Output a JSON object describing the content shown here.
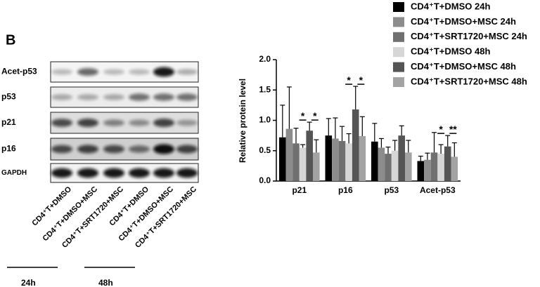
{
  "blot": {
    "panel": "B",
    "rows": [
      "Acet-p53",
      "p53",
      "p21",
      "p16",
      "GAPDH"
    ],
    "lanes": [
      "CD4⁺T+DMSO",
      "CD4⁺T+DMSO+MSC",
      "CD4⁺T+SRT1720+MSC",
      "CD4⁺T+DMSO",
      "CD4⁺T+DMSO+MSC",
      "CD4⁺T+SRT1720+MSC"
    ],
    "timepoints": [
      "24h",
      "48h"
    ]
  },
  "chart_data": {
    "type": "bar",
    "ylabel": "Relative  protein level",
    "categories": [
      "p21",
      "p16",
      "p53",
      "Acet-p53"
    ],
    "series": [
      {
        "name": "CD4⁺T+DMSO 24h",
        "color": "#000000",
        "values": [
          0.72,
          0.75,
          0.65,
          0.33
        ],
        "errors": [
          0.53,
          0.28,
          0.3,
          0.08
        ]
      },
      {
        "name": "CD4⁺T+DMSO+MSC 24h",
        "color": "#8c8c8c",
        "values": [
          0.86,
          0.7,
          0.55,
          0.35
        ],
        "errors": [
          0.69,
          0.34,
          0.15,
          0.11
        ]
      },
      {
        "name": "CD4⁺T+SRT1720+MSC 24h",
        "color": "#707070",
        "values": [
          0.62,
          0.66,
          0.45,
          0.47
        ],
        "errors": [
          0.25,
          0.24,
          0.11,
          0.33
        ]
      },
      {
        "name": "CD4⁺T+DMSO 48h",
        "color": "#d6d6d6",
        "values": [
          0.55,
          0.62,
          0.5,
          0.45
        ],
        "errors": [
          0.05,
          0.16,
          0.17,
          0.15
        ]
      },
      {
        "name": "CD4⁺T+DMSO+MSC 48h",
        "color": "#555555",
        "values": [
          0.83,
          1.18,
          0.75,
          0.57
        ],
        "errors": [
          0.14,
          0.38,
          0.16,
          0.18
        ]
      },
      {
        "name": "CD4⁺T+SRT1720+MSC 48h",
        "color": "#a3a3a3",
        "values": [
          0.47,
          0.74,
          0.47,
          0.4
        ],
        "errors": [
          0.21,
          0.32,
          0.2,
          0.23
        ]
      }
    ],
    "annotations": [
      {
        "text": "*",
        "category": "p21"
      },
      {
        "text": "*",
        "category": "p21"
      },
      {
        "text": "*",
        "category": "p16"
      },
      {
        "text": "*",
        "category": "p16"
      },
      {
        "text": "*",
        "category": "Acet-p53"
      },
      {
        "text": "**",
        "category": "Acet-p53"
      }
    ],
    "ylim": [
      0,
      2.0
    ],
    "yticks": [
      {
        "value": 0,
        "label": "0.0"
      },
      {
        "value": 0.5,
        "label": "0.5"
      },
      {
        "value": 1.0,
        "label": "1.0"
      },
      {
        "value": 1.5,
        "label": "1.5"
      },
      {
        "value": 2.0,
        "label": "2.0"
      }
    ]
  }
}
